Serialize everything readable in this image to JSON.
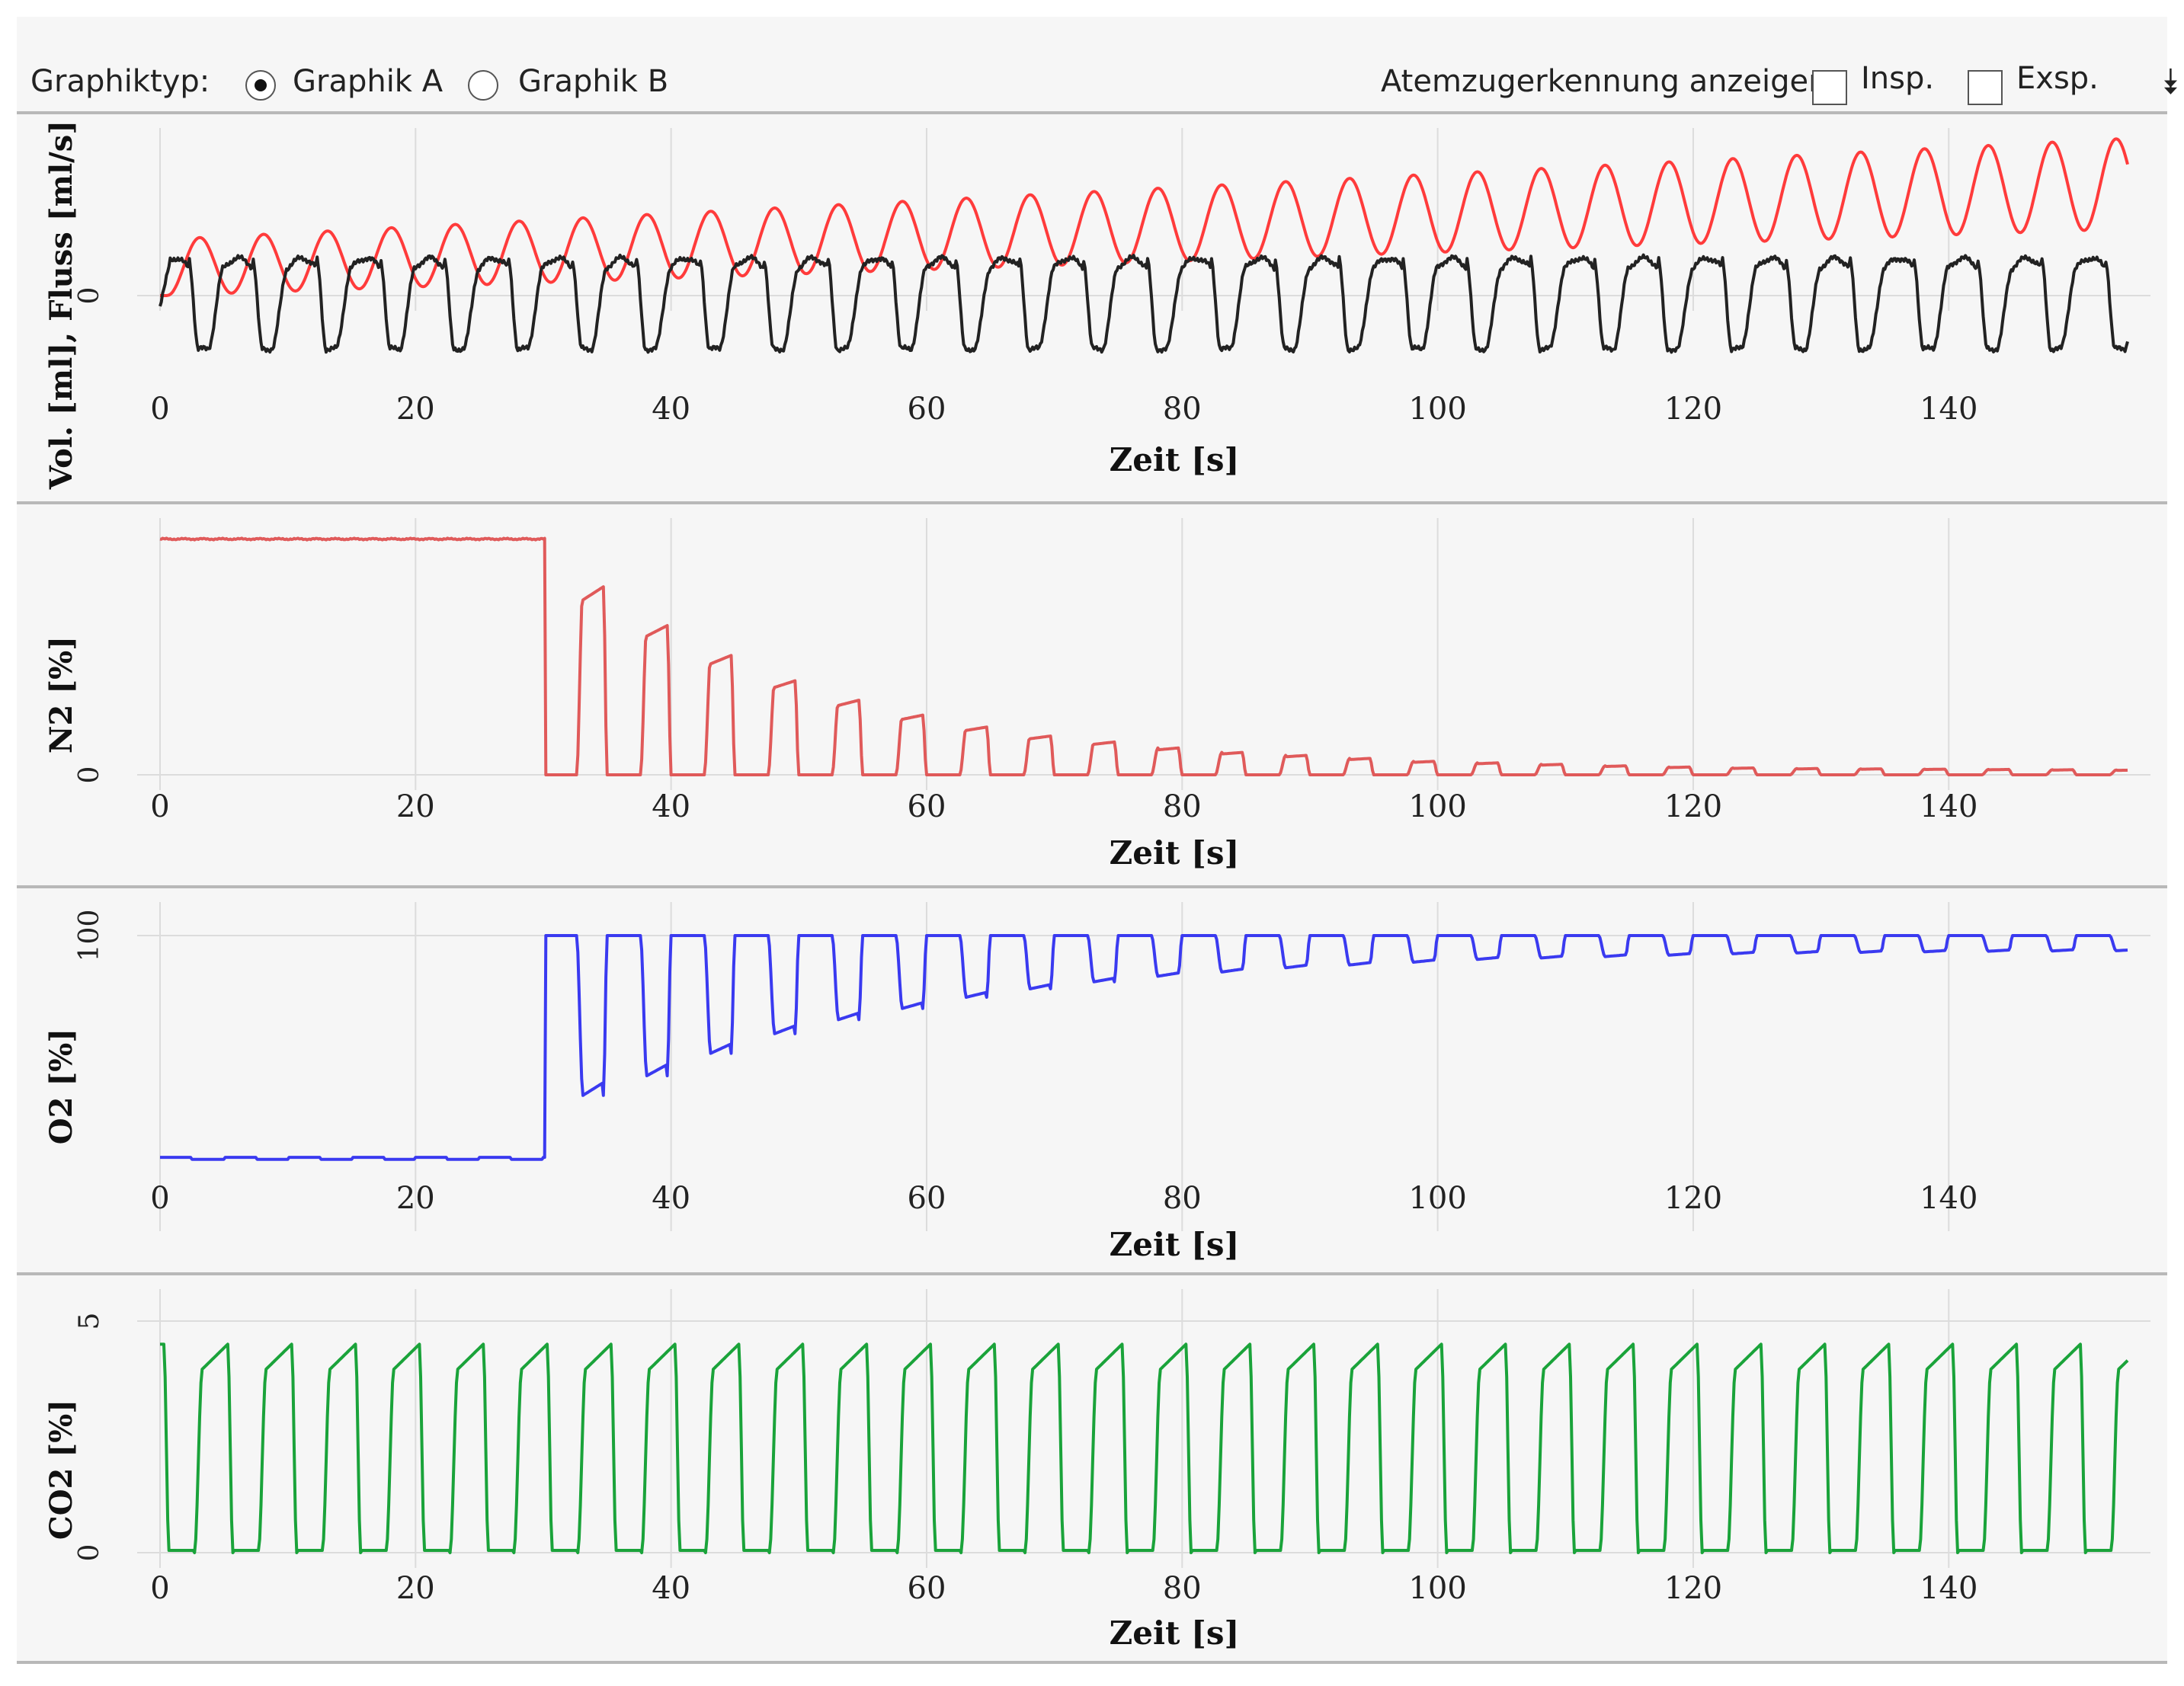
{
  "toolbar": {
    "graph_type_label": "Graphiktyp:",
    "option_a_label": "Graphik A",
    "option_b_label": "Graphik B",
    "selected_option": "Graphik A",
    "breath_detection_label": "Atemzugerkennung anzeigen:",
    "insp_label": "Insp.",
    "insp_checked": false,
    "exsp_label": "Exsp.",
    "exsp_checked": false,
    "expand_icon": "double-chevron-down-icon"
  },
  "chart_data": [
    {
      "type": "line",
      "ylabel": "Vol. [ml], Fluss [ml/s]",
      "xlabel": "Zeit [s]",
      "x_ticks": [
        0,
        20,
        40,
        60,
        80,
        100,
        120,
        140
      ],
      "y_ticks": [
        0
      ],
      "xlim": [
        0,
        154
      ],
      "grid": true,
      "series": [
        {
          "color": "#ff3b3b",
          "shape": "volume",
          "breath_period_s": 5,
          "start_s": 0,
          "end_s": 154,
          "baseline_at_start": 0,
          "baseline_at_end": 50,
          "amplitude_at_start": 42,
          "amplitude_at_end": 68
        },
        {
          "color": "#222222",
          "shape": "flow",
          "breath_period_s": 5,
          "start_s": 0,
          "end_s": 154,
          "peak_max": 28,
          "trough_min": -40
        }
      ]
    },
    {
      "type": "line",
      "ylabel": "N2 [%]",
      "xlabel": "Zeit [s]",
      "x_ticks": [
        0,
        20,
        40,
        60,
        80,
        100,
        120,
        140
      ],
      "y_ticks": [
        0
      ],
      "xlim": [
        0,
        154
      ],
      "ylim": [
        0,
        85
      ],
      "grid": true,
      "series": [
        {
          "color": "#e05a5a",
          "shape": "washout-pulses",
          "plateau_value": 79,
          "washout_start_s": 30.2,
          "breath_period_s": 5,
          "peaks": [
            63,
            50,
            40,
            31.5,
            25,
            20,
            16,
            13,
            11,
            9,
            7.5,
            6.5,
            5.5,
            4.5,
            4,
            3.5,
            3,
            2.6,
            2.3,
            2.1,
            2,
            1.9,
            1.8,
            1.7,
            1.6
          ]
        }
      ]
    },
    {
      "type": "line",
      "ylabel": "O2 [%]",
      "xlabel": "Zeit [s]",
      "x_ticks": [
        0,
        20,
        40,
        60,
        80,
        100,
        120,
        140
      ],
      "y_ticks": [
        100
      ],
      "xlim": [
        0,
        154
      ],
      "ylim": [
        0,
        100
      ],
      "grid": true,
      "series": [
        {
          "color": "#3a3af0",
          "shape": "washin-dips",
          "baseline_high": 20.9,
          "baseline_low": 20.2,
          "washout_start_s": 30.2,
          "breath_period_s": 5,
          "max_value": 100,
          "troughs": [
            43,
            50,
            58,
            65,
            70,
            74,
            78,
            81,
            83.5,
            85.5,
            87,
            88.5,
            89.5,
            90.5,
            91.5,
            92,
            92.5,
            93,
            93.5,
            93.8,
            94,
            94.2,
            94.4,
            94.5,
            94.6
          ]
        }
      ]
    },
    {
      "type": "line",
      "ylabel": "CO2 [%]",
      "xlabel": "Zeit [s]",
      "x_ticks": [
        0,
        20,
        40,
        60,
        80,
        100,
        120,
        140
      ],
      "y_ticks": [
        0,
        5
      ],
      "xlim": [
        0,
        154
      ],
      "ylim": [
        0,
        5
      ],
      "grid": true,
      "series": [
        {
          "color": "#1aa33a",
          "shape": "capnogram",
          "breath_period_s": 5,
          "plateau_value": 4.5,
          "baseline_value": 0.05
        }
      ]
    }
  ]
}
